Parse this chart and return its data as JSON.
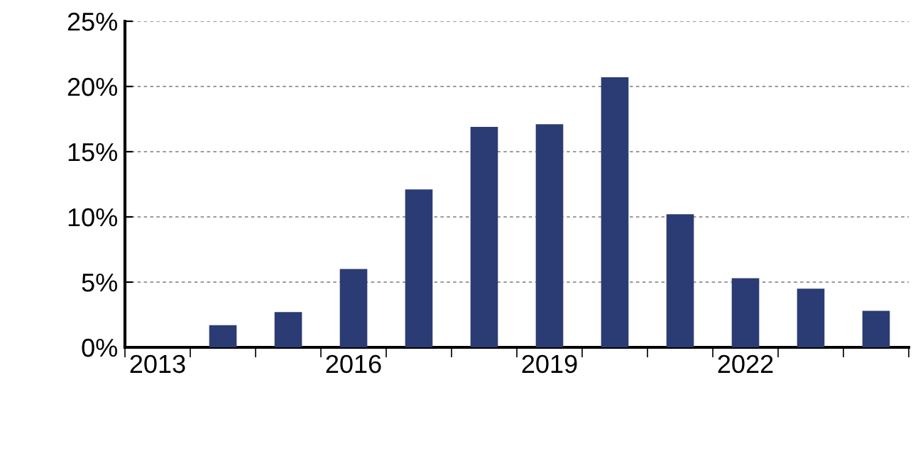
{
  "chart_data": {
    "type": "bar",
    "categories": [
      "2013",
      null,
      null,
      "2016",
      null,
      null,
      "2019",
      null,
      null,
      "2022",
      null,
      null
    ],
    "values": [
      null,
      1.7,
      2.7,
      6.0,
      12.1,
      16.9,
      17.1,
      20.7,
      10.2,
      5.3,
      4.5,
      2.8
    ],
    "color": "#2b3b74",
    "ylim": [
      0,
      25
    ],
    "yticks": [
      {
        "value": 0,
        "label": "0%"
      },
      {
        "value": 5,
        "label": "5%"
      },
      {
        "value": 10,
        "label": "10%"
      },
      {
        "value": 15,
        "label": "15%"
      },
      {
        "value": 20,
        "label": "20%"
      },
      {
        "value": 25,
        "label": "25%"
      }
    ],
    "grid": "y",
    "legend": false
  }
}
